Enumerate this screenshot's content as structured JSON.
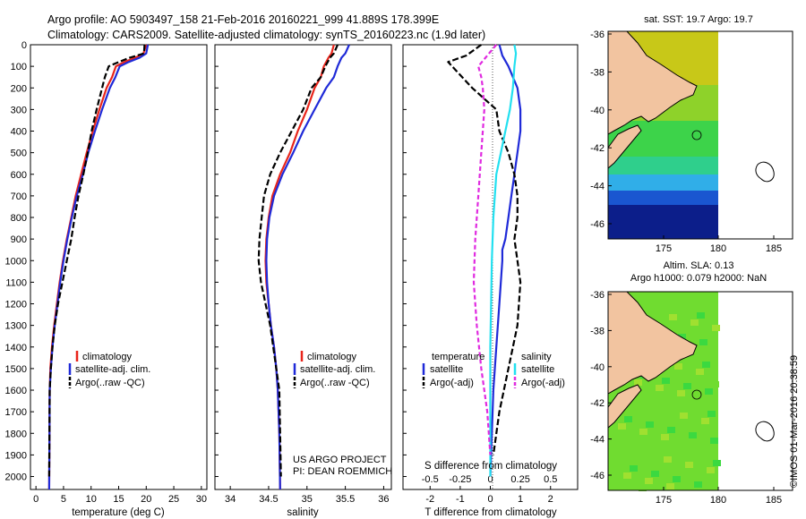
{
  "header": {
    "line1": "Argo profile: AO 5903497_158 21-Feb-2016 20160221_999 41.889S 178.399E",
    "line2": "Climatology: CARS2009. Satellite-adjusted climatology: synTS_20160223.nc (1.9d later)"
  },
  "colors": {
    "climatology": "#e8251b",
    "satellite": "#1f2ad8",
    "argo": "#000000",
    "satellite_salinity": "#22e0f0",
    "argo_salinity_adj": "#e02ae0",
    "land": "#f2c4a0",
    "sst_scale": [
      "#0c1e8a",
      "#1a56d0",
      "#30aee8",
      "#2fcf8c",
      "#3dd34a",
      "#8ed22a",
      "#c8c818"
    ],
    "sla_scale": [
      "#3bd940",
      "#70dc30",
      "#a0e030"
    ]
  },
  "depth_axis": {
    "ticks": [
      0,
      100,
      200,
      300,
      400,
      500,
      600,
      700,
      800,
      900,
      1000,
      1100,
      1200,
      1300,
      1400,
      1500,
      1600,
      1700,
      1800,
      1900,
      2000
    ],
    "range": [
      0,
      2060
    ]
  },
  "panels": {
    "temperature": {
      "xlabel": "temperature (deg C)",
      "xticks": [
        0,
        5,
        10,
        15,
        20,
        25,
        30
      ],
      "legend": [
        "climatology",
        "satellite-adj. clim.",
        "Argo(..raw -QC)"
      ]
    },
    "salinity": {
      "xlabel": "salinity",
      "xticks": [
        "34",
        "34.5",
        "35",
        "35.5",
        "36"
      ],
      "legend": [
        "climatology",
        "satellite-adj. clim.",
        "Argo(..raw -QC)"
      ],
      "project_line1": "US ARGO PROJECT",
      "project_line2": "PI: DEAN ROEMMICH"
    },
    "difference": {
      "top_label": "S difference from climatology",
      "top_ticks": [
        "-0.5",
        "-0.25",
        "0",
        "0.25",
        "0.5"
      ],
      "xlabel": "T difference from climatology",
      "xticks": [
        "-2",
        "-1",
        "0",
        "1",
        "2"
      ],
      "legend_temp_title": "temperature",
      "legend_sal_title": "salinity",
      "legend_items": [
        "satellite",
        "Argo(-adj)",
        "satellite",
        "Argo(-adj)"
      ]
    }
  },
  "maps": {
    "sst_title": "sat. SST: 19.7  Argo: 19.7",
    "sla_title1": "Altim. SLA: 0.13",
    "sla_title2": "Argo h1000: 0.079  h2000: NaN",
    "yticks": [
      "-36",
      "-38",
      "-40",
      "-42",
      "-44",
      "-46"
    ],
    "xticks": [
      "175",
      "180",
      "185"
    ]
  },
  "watermark": "©IMOS 01-Mar-2016 20:38:59",
  "chart_data": [
    {
      "type": "line",
      "title": "",
      "xlabel": "temperature (deg C)",
      "ylabel": "",
      "xlim": [
        -1,
        31
      ],
      "ylim": [
        2060,
        0
      ],
      "series": [
        {
          "name": "climatology",
          "x": [
            20.0,
            19.5,
            18.0,
            16.0,
            14.5,
            13.8,
            12.8,
            11.5,
            10.3,
            9.2,
            8.2,
            7.2,
            6.4,
            5.6,
            4.9,
            4.3,
            3.8,
            3.3,
            2.9,
            2.6,
            2.5,
            2.4
          ],
          "y": [
            0,
            40,
            60,
            80,
            100,
            150,
            200,
            300,
            400,
            500,
            600,
            700,
            800,
            900,
            1000,
            1100,
            1200,
            1300,
            1400,
            1500,
            1600,
            2060
          ]
        },
        {
          "name": "satellite-adj. clim.",
          "x": [
            20.3,
            20.0,
            18.8,
            16.8,
            15.2,
            14.4,
            13.4,
            12.0,
            10.7,
            9.5,
            8.5,
            7.4,
            6.5,
            5.7,
            5.0,
            4.4,
            3.9,
            3.4,
            3.0,
            2.7,
            2.5,
            2.4
          ],
          "y": [
            0,
            40,
            60,
            80,
            100,
            150,
            200,
            300,
            400,
            500,
            600,
            700,
            800,
            900,
            1000,
            1100,
            1200,
            1300,
            1400,
            1500,
            1600,
            2060
          ]
        },
        {
          "name": "Argo(..raw -QC)",
          "x": [
            19.7,
            19.6,
            17.0,
            15.0,
            13.2,
            12.5,
            12.0,
            11.0,
            10.1,
            9.4,
            8.6,
            7.7,
            7.0,
            6.4,
            5.6,
            4.8,
            4.0,
            3.4,
            3.0,
            2.7,
            2.5,
            2.4
          ],
          "y": [
            0,
            40,
            60,
            80,
            100,
            150,
            200,
            300,
            400,
            500,
            600,
            700,
            800,
            900,
            1000,
            1100,
            1200,
            1300,
            1400,
            1500,
            1600,
            2000
          ]
        }
      ]
    },
    {
      "type": "line",
      "title": "",
      "xlabel": "salinity",
      "ylabel": "",
      "xlim": [
        33.8,
        36.1
      ],
      "ylim": [
        2060,
        0
      ],
      "series": [
        {
          "name": "climatology",
          "x": [
            35.35,
            35.32,
            35.28,
            35.22,
            35.18,
            35.1,
            35.0,
            34.88,
            34.78,
            34.65,
            34.55,
            34.5,
            34.47,
            34.46,
            34.47,
            34.5,
            34.53,
            34.57,
            34.6,
            34.62,
            34.64,
            34.65
          ],
          "y": [
            0,
            40,
            60,
            100,
            150,
            200,
            300,
            400,
            500,
            600,
            700,
            800,
            900,
            1000,
            1100,
            1200,
            1300,
            1400,
            1500,
            1600,
            1800,
            2060
          ]
        },
        {
          "name": "satellite-adj. clim.",
          "x": [
            35.55,
            35.5,
            35.45,
            35.4,
            35.35,
            35.25,
            35.1,
            34.95,
            34.82,
            34.68,
            34.57,
            34.51,
            34.48,
            34.47,
            34.48,
            34.5,
            34.53,
            34.57,
            34.6,
            34.62,
            34.64,
            34.65
          ],
          "y": [
            0,
            40,
            60,
            100,
            150,
            200,
            300,
            400,
            500,
            600,
            700,
            800,
            900,
            1000,
            1100,
            1200,
            1300,
            1400,
            1500,
            1600,
            1800,
            2060
          ]
        },
        {
          "name": "Argo(..raw -QC)",
          "x": [
            35.4,
            35.35,
            35.3,
            35.24,
            35.18,
            35.06,
            34.95,
            34.8,
            34.65,
            34.52,
            34.44,
            34.41,
            34.38,
            34.37,
            34.4,
            34.46,
            34.52,
            34.56,
            34.6,
            34.64,
            34.66
          ],
          "y": [
            0,
            40,
            60,
            100,
            150,
            200,
            300,
            400,
            500,
            600,
            700,
            800,
            900,
            1000,
            1100,
            1200,
            1300,
            1400,
            1500,
            1600,
            2000
          ]
        }
      ]
    },
    {
      "type": "line",
      "title": "",
      "xlabel": "T difference from climatology",
      "ylabel": "",
      "xlim": [
        -2.9,
        2.9
      ],
      "ylim": [
        2060,
        0
      ],
      "series": [
        {
          "name": "satellite (temperature)",
          "x": [
            0.3,
            0.4,
            0.6,
            0.9,
            1.0,
            1.0,
            0.9,
            0.8,
            0.7,
            0.6,
            0.5,
            0.4,
            0.4,
            0.3,
            0.2,
            0.1,
            0.0
          ],
          "y": [
            0,
            50,
            100,
            200,
            300,
            400,
            500,
            600,
            700,
            800,
            900,
            950,
            1000,
            1200,
            1400,
            1600,
            2000
          ]
        },
        {
          "name": "Argo(-adj) (temperature)",
          "x": [
            -0.3,
            -0.8,
            -1.4,
            -0.6,
            0.2,
            0.3,
            0.6,
            0.8,
            0.9,
            0.9,
            0.8,
            0.9,
            1.0,
            0.9,
            0.6,
            0.3,
            0.1
          ],
          "y": [
            0,
            50,
            80,
            200,
            300,
            400,
            500,
            600,
            700,
            800,
            900,
            1000,
            1100,
            1300,
            1500,
            1700,
            1900
          ]
        },
        {
          "name": "satellite (salinity)",
          "x": [
            0.8,
            0.85,
            0.8,
            0.75,
            0.65,
            0.5,
            0.35,
            0.2,
            0.1,
            0.05,
            0.0,
            0.0,
            0.0
          ],
          "y": [
            0,
            40,
            100,
            200,
            300,
            400,
            500,
            600,
            800,
            1000,
            1400,
            1800,
            2000
          ]
        },
        {
          "name": "Argo(-adj) (salinity)",
          "x": [
            0.2,
            -0.1,
            -0.4,
            -0.3,
            -0.25,
            -0.2,
            -0.3,
            -0.4,
            -0.5,
            -0.55,
            -0.45,
            -0.3,
            -0.1,
            0.0
          ],
          "y": [
            0,
            50,
            100,
            150,
            200,
            300,
            500,
            700,
            900,
            1100,
            1300,
            1500,
            1700,
            1900
          ]
        }
      ]
    }
  ]
}
